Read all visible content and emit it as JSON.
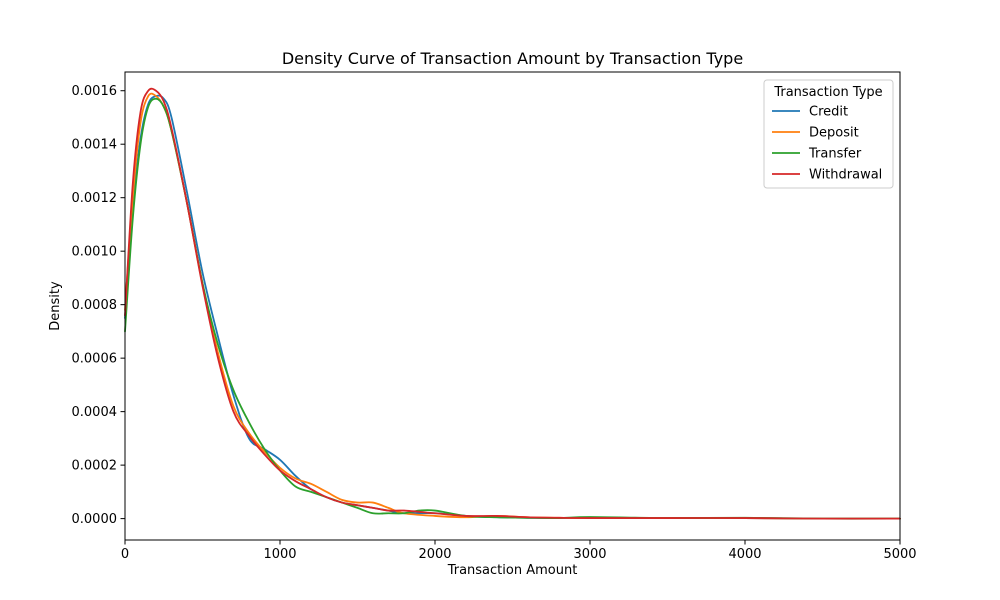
{
  "chart_data": {
    "type": "line",
    "title": "Density Curve of Transaction Amount by Transaction Type",
    "xlabel": "Transaction Amount",
    "ylabel": "Density",
    "xlim": [
      0,
      5000
    ],
    "ylim": [
      -8e-05,
      0.00167
    ],
    "grid": false,
    "legend": {
      "title": "Transaction Type",
      "placement": "top-right"
    },
    "x_ticks": [
      0,
      1000,
      2000,
      3000,
      4000,
      5000
    ],
    "x_tick_labels": [
      "0",
      "1000",
      "2000",
      "3000",
      "4000",
      "5000"
    ],
    "y_ticks": [
      0,
      0.0002,
      0.0004,
      0.0006,
      0.0008,
      0.001,
      0.0012,
      0.0014,
      0.0016
    ],
    "y_tick_labels": [
      "0.0000",
      "0.0002",
      "0.0004",
      "0.0006",
      "0.0008",
      "0.0010",
      "0.0012",
      "0.0014",
      "0.0016"
    ],
    "series": [
      {
        "name": "Credit",
        "color": "#1f77b4",
        "x": [
          0,
          50,
          100,
          150,
          200,
          250,
          300,
          400,
          500,
          600,
          700,
          800,
          900,
          1000,
          1100,
          1200,
          1300,
          1400,
          1500,
          1600,
          1700,
          1800,
          2000,
          2200,
          2400,
          2600,
          2800,
          3000,
          3500,
          4000,
          4500,
          5000
        ],
        "y": [
          0.00075,
          0.00115,
          0.00142,
          0.00155,
          0.00158,
          0.00157,
          0.0015,
          0.00122,
          0.00092,
          0.00068,
          0.00046,
          0.0003,
          0.00026,
          0.00022,
          0.00016,
          0.00011,
          8e-05,
          6e-05,
          5e-05,
          4e-05,
          3e-05,
          2e-05,
          2e-05,
          1e-05,
          5e-06,
          3e-06,
          2e-06,
          3e-06,
          2e-06,
          2e-06,
          0.0,
          0.0
        ]
      },
      {
        "name": "Deposit",
        "color": "#ff7f0e",
        "x": [
          0,
          50,
          100,
          150,
          200,
          250,
          300,
          400,
          500,
          600,
          700,
          800,
          900,
          1000,
          1100,
          1200,
          1300,
          1400,
          1500,
          1600,
          1700,
          1800,
          2000,
          2200,
          2400,
          2600,
          2800,
          3000,
          3500,
          4000,
          4500,
          5000
        ],
        "y": [
          0.00078,
          0.0012,
          0.00148,
          0.00158,
          0.00158,
          0.00154,
          0.00145,
          0.00118,
          0.00088,
          0.00062,
          0.00042,
          0.00032,
          0.00025,
          0.00019,
          0.00015,
          0.00013,
          0.0001,
          7e-05,
          6e-05,
          6e-05,
          4e-05,
          2e-05,
          1e-05,
          5e-06,
          1e-05,
          5e-06,
          3e-06,
          2e-06,
          2e-06,
          2e-06,
          0.0,
          0.0
        ]
      },
      {
        "name": "Transfer",
        "color": "#2ca02c",
        "x": [
          0,
          50,
          100,
          150,
          200,
          250,
          300,
          400,
          500,
          600,
          700,
          800,
          900,
          1000,
          1100,
          1200,
          1300,
          1400,
          1500,
          1600,
          1700,
          1800,
          1900,
          2000,
          2200,
          2400,
          2600,
          2800,
          3000,
          3500,
          4000,
          4500,
          5000
        ],
        "y": [
          0.0007,
          0.00112,
          0.0014,
          0.00154,
          0.00157,
          0.00154,
          0.00145,
          0.00118,
          0.00088,
          0.00065,
          0.00048,
          0.00036,
          0.00026,
          0.00018,
          0.00012,
          0.0001,
          8e-05,
          6e-05,
          4e-05,
          2e-05,
          2e-05,
          2e-05,
          3e-05,
          3e-05,
          1e-05,
          5e-06,
          3e-06,
          2e-06,
          6e-06,
          2e-06,
          3e-06,
          0.0,
          0.0
        ]
      },
      {
        "name": "Withdrawal",
        "color": "#d62728",
        "x": [
          0,
          50,
          100,
          150,
          200,
          250,
          300,
          400,
          500,
          600,
          700,
          800,
          900,
          1000,
          1100,
          1200,
          1300,
          1400,
          1500,
          1600,
          1700,
          1800,
          2000,
          2200,
          2400,
          2600,
          2800,
          3000,
          3500,
          4000,
          4500,
          5000
        ],
        "y": [
          0.00076,
          0.00125,
          0.00152,
          0.0016,
          0.0016,
          0.00156,
          0.00146,
          0.00118,
          0.00087,
          0.0006,
          0.0004,
          0.00031,
          0.00024,
          0.00018,
          0.00014,
          0.00011,
          8e-05,
          6e-05,
          5e-05,
          4e-05,
          3e-05,
          3e-05,
          2e-05,
          1e-05,
          1e-05,
          5e-06,
          3e-06,
          2e-06,
          2e-06,
          2e-06,
          0.0,
          0.0
        ]
      }
    ]
  }
}
